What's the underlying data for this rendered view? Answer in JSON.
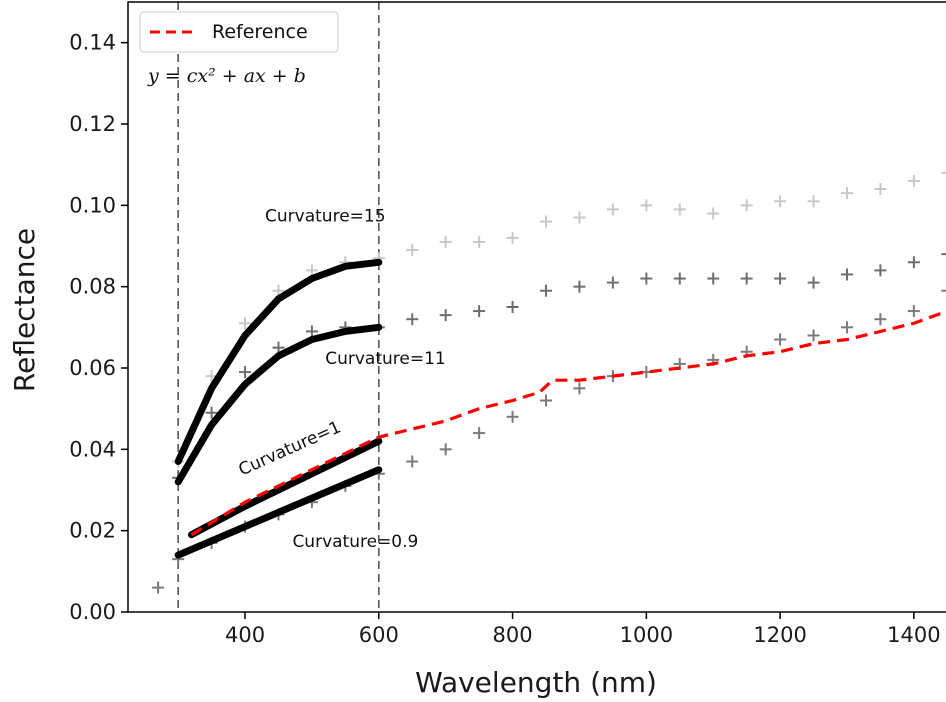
{
  "chart_data": {
    "type": "scatter",
    "xlabel": "Wavelength (nm)",
    "ylabel": "Reflectance",
    "xlim": [
      225,
      1460
    ],
    "ylim": [
      0.0,
      0.15
    ],
    "xticks": [
      400,
      600,
      800,
      1000,
      1200,
      1400
    ],
    "yticks": [
      0.0,
      0.02,
      0.04,
      0.06,
      0.08,
      0.1,
      0.12,
      0.14
    ],
    "grid": false,
    "legend": {
      "placement": "top-left",
      "entries": [
        {
          "label": "Reference",
          "color": "#ff0000",
          "style": "dashed"
        }
      ]
    },
    "equation_text": "y = cx² + ax + b",
    "vertical_lines": [
      300,
      600
    ],
    "annotations": [
      {
        "text": "Curvature=15",
        "x": 520,
        "y": 0.096
      },
      {
        "text": "Curvature=11",
        "x": 610,
        "y": 0.061
      },
      {
        "text": "Curvature=1",
        "x": 470,
        "y": 0.039,
        "rotation": -24
      },
      {
        "text": "Curvature=0.9",
        "x": 565,
        "y": 0.016
      }
    ],
    "scatter_series": [
      {
        "color": "#c8c8c8",
        "marker": "+",
        "x": [
          300,
          350,
          400,
          450,
          500,
          550,
          600,
          650,
          700,
          750,
          800,
          850,
          900,
          950,
          1000,
          1050,
          1100,
          1150,
          1200,
          1250,
          1300,
          1350,
          1400,
          1450
        ],
        "y": [
          0.037,
          0.058,
          0.071,
          0.079,
          0.084,
          0.086,
          0.087,
          0.089,
          0.091,
          0.091,
          0.092,
          0.096,
          0.097,
          0.099,
          0.1,
          0.099,
          0.098,
          0.1,
          0.101,
          0.101,
          0.103,
          0.104,
          0.106,
          0.108
        ]
      },
      {
        "color": "#6e6e6e",
        "marker": "+",
        "x": [
          300,
          350,
          400,
          450,
          500,
          550,
          600,
          650,
          700,
          750,
          800,
          850,
          900,
          950,
          1000,
          1050,
          1100,
          1150,
          1200,
          1250,
          1300,
          1350,
          1400,
          1450
        ],
        "y": [
          0.033,
          0.049,
          0.059,
          0.065,
          0.069,
          0.07,
          0.07,
          0.072,
          0.073,
          0.074,
          0.075,
          0.079,
          0.08,
          0.081,
          0.082,
          0.082,
          0.082,
          0.082,
          0.082,
          0.081,
          0.083,
          0.084,
          0.086,
          0.088
        ]
      },
      {
        "color": "#7a7a7a",
        "marker": "+",
        "x": [
          270,
          300,
          350,
          400,
          450,
          500,
          550,
          600,
          650,
          700,
          750,
          800,
          850,
          900,
          950,
          1000,
          1050,
          1100,
          1150,
          1200,
          1250,
          1300,
          1350,
          1400,
          1450
        ],
        "y": [
          0.006,
          0.013,
          0.017,
          0.021,
          0.024,
          0.027,
          0.031,
          0.034,
          0.037,
          0.04,
          0.044,
          0.048,
          0.052,
          0.055,
          0.058,
          0.059,
          0.061,
          0.062,
          0.064,
          0.067,
          0.068,
          0.07,
          0.072,
          0.074,
          0.079
        ]
      }
    ],
    "reference_series": {
      "name": "Reference",
      "color": "#ff0000",
      "x": [
        320,
        400,
        500,
        600,
        650,
        700,
        750,
        800,
        840,
        860,
        900,
        950,
        1000,
        1050,
        1100,
        1150,
        1200,
        1250,
        1300,
        1350,
        1400,
        1450
      ],
      "y": [
        0.019,
        0.027,
        0.035,
        0.043,
        0.045,
        0.047,
        0.05,
        0.052,
        0.054,
        0.057,
        0.057,
        0.058,
        0.059,
        0.06,
        0.061,
        0.063,
        0.064,
        0.066,
        0.067,
        0.069,
        0.071,
        0.074
      ]
    },
    "fit_lines": [
      {
        "curvature": "15",
        "x": [
          300,
          350,
          400,
          450,
          500,
          550,
          600
        ],
        "y": [
          0.037,
          0.055,
          0.068,
          0.077,
          0.082,
          0.085,
          0.086
        ]
      },
      {
        "curvature": "11",
        "x": [
          300,
          350,
          400,
          450,
          500,
          550,
          600
        ],
        "y": [
          0.032,
          0.046,
          0.056,
          0.063,
          0.067,
          0.069,
          0.07
        ]
      },
      {
        "curvature": "1",
        "x": [
          320,
          400,
          500,
          600
        ],
        "y": [
          0.019,
          0.026,
          0.034,
          0.042
        ]
      },
      {
        "curvature": "0.9",
        "x": [
          300,
          400,
          500,
          600
        ],
        "y": [
          0.014,
          0.021,
          0.028,
          0.035
        ]
      }
    ]
  }
}
